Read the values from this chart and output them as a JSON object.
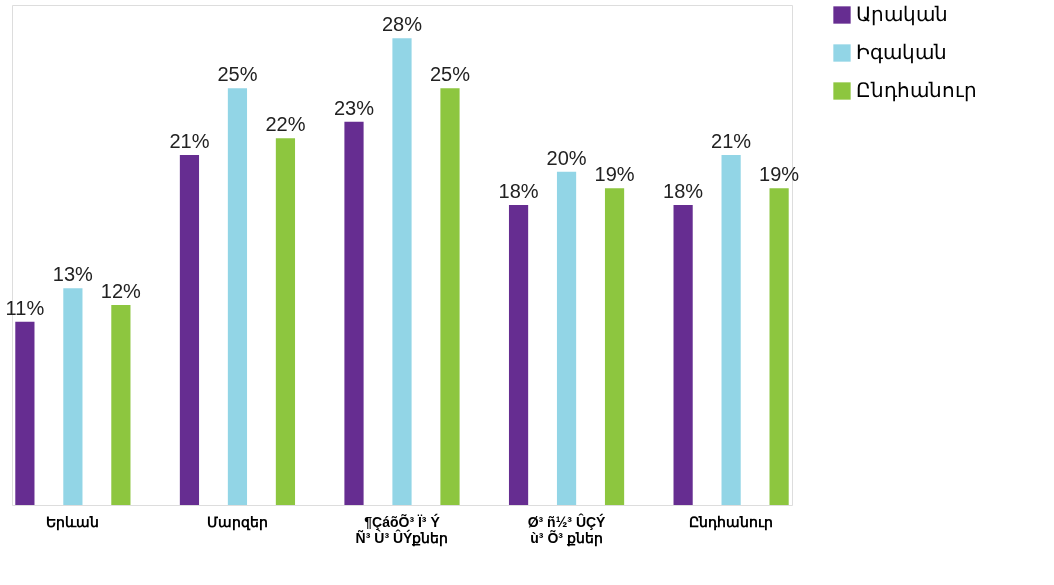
{
  "chart_data": {
    "type": "bar",
    "categories": [
      "Երևան",
      "Մարզեր",
      "¶ÇáõÕ³ Ï³ Ý\nÑ³ Ù³ ÛÝքներ",
      "Ø³ ñ½³ ÛÇÝ\nù³ Õ³ քներ",
      "Ընդհանուր"
    ],
    "series": [
      {
        "name": "Արական",
        "color": "#662d91",
        "values": [
          11,
          21,
          23,
          18,
          18
        ],
        "value_labels": [
          "11%",
          "21%",
          "23%",
          "18%",
          "18%"
        ]
      },
      {
        "name": "Իգական",
        "color": "#92d5e6",
        "values": [
          13,
          25,
          28,
          20,
          21
        ],
        "value_labels": [
          "13%",
          "25%",
          "28%",
          "20%",
          "21%"
        ]
      },
      {
        "name": "Ընդհանուր",
        "color": "#8dc63f",
        "values": [
          12,
          22,
          25,
          19,
          19
        ],
        "value_labels": [
          "12%",
          "22%",
          "25%",
          "19%",
          "19%"
        ]
      }
    ],
    "ylim": [
      0,
      30
    ],
    "legend": "right",
    "grid": false
  }
}
